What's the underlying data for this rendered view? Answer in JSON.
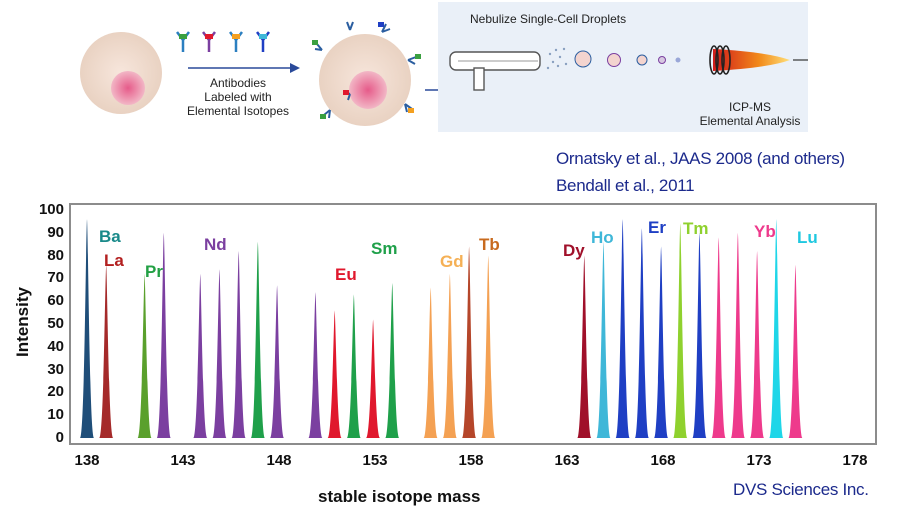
{
  "workflow": {
    "antibody_label": [
      "Antibodies",
      "Labeled with",
      "Elemental Isotopes"
    ],
    "nebulize_title": "Nebulize Single-Cell Droplets",
    "icpms_label": [
      "ICP-MS",
      "Elemental Analysis"
    ]
  },
  "citations": [
    "Ornatsky et al., JAAS 2008 (and others)",
    "Bendall et al., 2011"
  ],
  "credit": "DVS Sciences Inc.",
  "chart_data": {
    "type": "area",
    "title": "",
    "xlabel": "stable isotope mass",
    "ylabel": "Intensity",
    "xlim": [
      137.5,
      179.5
    ],
    "ylim": [
      0,
      100
    ],
    "xticks": [
      138,
      143,
      148,
      153,
      158,
      163,
      168,
      173,
      178
    ],
    "yticks": [
      0,
      10,
      20,
      30,
      40,
      50,
      60,
      70,
      80,
      90,
      100
    ],
    "peaks": [
      {
        "mass": 138.0,
        "intensity": 96,
        "element": "Ba",
        "color": "#1f4e79"
      },
      {
        "mass": 139.0,
        "intensity": 76,
        "element": "La",
        "color": "#a52a2a"
      },
      {
        "mass": 141.0,
        "intensity": 72,
        "element": "Pr",
        "color": "#5aa02c"
      },
      {
        "mass": 142.0,
        "intensity": 90,
        "element": "Nd",
        "color": "#7b3fa0"
      },
      {
        "mass": 143.9,
        "intensity": 72,
        "element": "Nd",
        "color": "#7b3fa0"
      },
      {
        "mass": 144.9,
        "intensity": 74,
        "element": "Nd",
        "color": "#7b3fa0"
      },
      {
        "mass": 145.9,
        "intensity": 82,
        "element": "Nd",
        "color": "#7b3fa0"
      },
      {
        "mass": 146.9,
        "intensity": 86,
        "element": "Sm",
        "color": "#1fa04a"
      },
      {
        "mass": 147.9,
        "intensity": 67,
        "element": "Nd",
        "color": "#7b3fa0"
      },
      {
        "mass": 149.9,
        "intensity": 64,
        "element": "Nd",
        "color": "#7b3fa0"
      },
      {
        "mass": 150.9,
        "intensity": 56,
        "element": "Eu",
        "color": "#e0182d"
      },
      {
        "mass": 151.9,
        "intensity": 63,
        "element": "Sm",
        "color": "#1fa04a"
      },
      {
        "mass": 152.9,
        "intensity": 52,
        "element": "Eu",
        "color": "#e0182d"
      },
      {
        "mass": 153.9,
        "intensity": 68,
        "element": "Sm",
        "color": "#1fa04a"
      },
      {
        "mass": 155.9,
        "intensity": 66,
        "element": "Gd",
        "color": "#f4a153"
      },
      {
        "mass": 156.9,
        "intensity": 72,
        "element": "Gd",
        "color": "#f4a153"
      },
      {
        "mass": 157.9,
        "intensity": 84,
        "element": "Tb",
        "color": "#b5462a"
      },
      {
        "mass": 158.9,
        "intensity": 80,
        "element": "Gd",
        "color": "#f4a153"
      },
      {
        "mass": 163.9,
        "intensity": 80,
        "element": "Dy",
        "color": "#a0102a"
      },
      {
        "mass": 164.9,
        "intensity": 86,
        "element": "Ho",
        "color": "#3fb7d8"
      },
      {
        "mass": 165.9,
        "intensity": 96,
        "element": "Er",
        "color": "#1f3fc4"
      },
      {
        "mass": 166.9,
        "intensity": 92,
        "element": "Er",
        "color": "#1f3fc4"
      },
      {
        "mass": 167.9,
        "intensity": 84,
        "element": "Er",
        "color": "#1f3fc4"
      },
      {
        "mass": 168.9,
        "intensity": 94,
        "element": "Tm",
        "color": "#8fd12e"
      },
      {
        "mass": 169.9,
        "intensity": 90,
        "element": "Er",
        "color": "#1f3fc4"
      },
      {
        "mass": 170.9,
        "intensity": 88,
        "element": "Yb",
        "color": "#ee3a8c"
      },
      {
        "mass": 171.9,
        "intensity": 90,
        "element": "Yb",
        "color": "#ee3a8c"
      },
      {
        "mass": 172.9,
        "intensity": 82,
        "element": "Yb",
        "color": "#ee3a8c"
      },
      {
        "mass": 173.9,
        "intensity": 96,
        "element": "Lu",
        "color": "#1fd6e8"
      },
      {
        "mass": 174.9,
        "intensity": 76,
        "element": "Yb",
        "color": "#ee3a8c"
      }
    ],
    "element_labels": [
      {
        "text": "Ba",
        "color": "#1a8a8a"
      },
      {
        "text": "La",
        "color": "#b32020"
      },
      {
        "text": "Pr",
        "color": "#22a044"
      },
      {
        "text": "Nd",
        "color": "#7b3fa0"
      },
      {
        "text": "Eu",
        "color": "#e0182d"
      },
      {
        "text": "Sm",
        "color": "#1fa04a"
      },
      {
        "text": "Gd",
        "color": "#f5b055"
      },
      {
        "text": "Tb",
        "color": "#c86a1e"
      },
      {
        "text": "Dy",
        "color": "#a0102a"
      },
      {
        "text": "Ho",
        "color": "#3fb7d8"
      },
      {
        "text": "Er",
        "color": "#1f3fc4"
      },
      {
        "text": "Tm",
        "color": "#8fd12e"
      },
      {
        "text": "Yb",
        "color": "#ee3a8c"
      },
      {
        "text": "Lu",
        "color": "#1fc8e0"
      }
    ]
  }
}
